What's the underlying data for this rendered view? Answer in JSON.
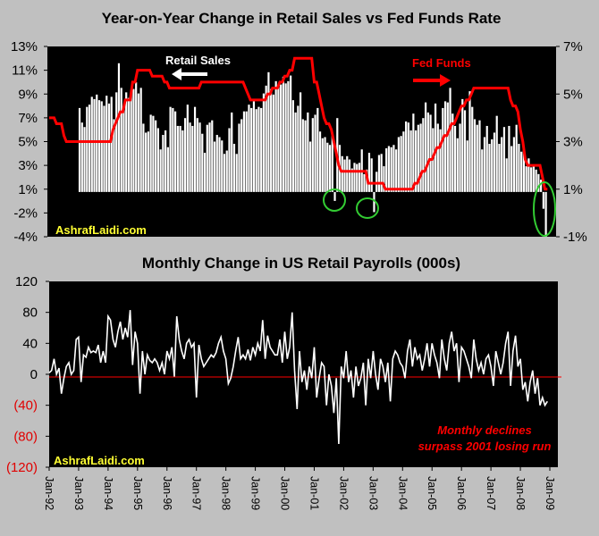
{
  "chart_data": [
    {
      "type": "bar+line",
      "title": "Year-on-Year Change in Retail Sales vs Fed Funds Rate",
      "left_axis": {
        "ylim": [
          -4,
          13
        ],
        "tick_labels": [
          "13%",
          "11%",
          "9%",
          "7%",
          "5%",
          "3%",
          "1%",
          "-2%",
          "-4%"
        ]
      },
      "right_axis": {
        "ylim": [
          -1,
          7
        ],
        "tick_labels": [
          "7%",
          "5%",
          "3%",
          "1%",
          "-1%"
        ]
      },
      "grid": false,
      "background": "#000000",
      "series": [
        {
          "name": "Retail Sales",
          "type": "bar",
          "axis": "left",
          "color": "#ffffff",
          "start": "Jan-93",
          "values": [
            7.5,
            6.2,
            5.8,
            7.6,
            7.8,
            8.5,
            8.3,
            8.7,
            8.2,
            8.1,
            7.7,
            8.6,
            7.9,
            8.5,
            6.5,
            8.9,
            11.5,
            9.3,
            7.6,
            8.9,
            8.4,
            9.1,
            9.2,
            9.8,
            8.8,
            9.3,
            6.1,
            5.3,
            5.4,
            6.9,
            6.8,
            6.4,
            5.7,
            3.8,
            5.1,
            5.5,
            4.0,
            7.6,
            7.5,
            7.2,
            5.9,
            5.9,
            5.5,
            6.6,
            7.8,
            6.2,
            5.9,
            7.6,
            6.6,
            6.2,
            5.2,
            3.5,
            6.0,
            6.2,
            6.4,
            4.5,
            5.1,
            4.9,
            4.6,
            3.4,
            3.7,
            5.7,
            7.1,
            4.3,
            3.4,
            6.1,
            6.5,
            7.2,
            7.2,
            7.8,
            7.5,
            8.1,
            7.4,
            7.6,
            7.5,
            8.8,
            9.5,
            10.7,
            9.2,
            8.7,
            9.9,
            9.4,
            9.6,
            10.3,
            9.7,
            9.9,
            10.4,
            8.2,
            7.1,
            7.7,
            8.9,
            6.5,
            6.4,
            7.1,
            4.5,
            6.6,
            6.9,
            7.5,
            5.4,
            4.8,
            4.9,
            4.4,
            4.2,
            5.1,
            -0.8,
            6.6,
            4.2,
            3.2,
            2.9,
            3.2,
            2.9,
            2.1,
            2.6,
            2.5,
            2.6,
            3.8,
            1.6,
            2.0,
            3.5,
            3.0,
            -1.8,
            1.8,
            3.3,
            3.4,
            2.3,
            3.9,
            4.1,
            4.0,
            4.2,
            3.8,
            4.9,
            5.0,
            5.4,
            6.3,
            6.2,
            5.5,
            7.0,
            5.5,
            6.0,
            6.1,
            6.6,
            8.0,
            7.1,
            6.9,
            5.7,
            7.9,
            6.1,
            5.6,
            7.5,
            8.1,
            8.0,
            9.3,
            7.0,
            5.9,
            4.8,
            6.1,
            8.3,
            7.3,
            4.6,
            9.0,
            7.6,
            6.5,
            6.0,
            6.4,
            3.8,
            4.9,
            5.9,
            4.3,
            4.7,
            5.3,
            6.8,
            4.3,
            4.9,
            5.8,
            3.0,
            5.9,
            4.1,
            4.9,
            6.0,
            4.3,
            3.6,
            4.1,
            2.3,
            3.0,
            2.2,
            2.4,
            2.0,
            1.6,
            1.1,
            -1.5,
            -4.0
          ]
        },
        {
          "name": "Fed Funds",
          "type": "line",
          "axis": "right",
          "color": "#ff0000",
          "start": "Jan-92",
          "values": [
            4,
            4,
            4,
            3.75,
            3.75,
            3.75,
            3.25,
            3,
            3,
            3,
            3,
            3,
            3,
            3,
            3,
            3,
            3,
            3,
            3,
            3,
            3,
            3,
            3,
            3,
            3,
            3,
            3.5,
            3.75,
            4,
            4.25,
            4.25,
            4.75,
            4.75,
            4.75,
            5.5,
            5.5,
            6,
            6,
            6,
            6,
            6,
            6,
            5.75,
            5.75,
            5.75,
            5.75,
            5.75,
            5.5,
            5.5,
            5.25,
            5.25,
            5.25,
            5.25,
            5.25,
            5.25,
            5.25,
            5.25,
            5.25,
            5.25,
            5.25,
            5.25,
            5.25,
            5.5,
            5.5,
            5.5,
            5.5,
            5.5,
            5.5,
            5.5,
            5.5,
            5.5,
            5.5,
            5.5,
            5.5,
            5.5,
            5.5,
            5.5,
            5.5,
            5.5,
            5.5,
            5.25,
            5,
            4.75,
            4.75,
            4.75,
            4.75,
            4.75,
            4.75,
            4.75,
            5,
            5,
            5.25,
            5.25,
            5.25,
            5.5,
            5.5,
            5.75,
            5.75,
            6,
            6,
            6.5,
            6.5,
            6.5,
            6.5,
            6.5,
            6.5,
            6.5,
            6.5,
            5.5,
            5.5,
            5,
            4.5,
            4,
            3.75,
            3.75,
            3.5,
            3,
            2.5,
            2,
            1.75,
            1.75,
            1.75,
            1.75,
            1.75,
            1.75,
            1.75,
            1.75,
            1.75,
            1.75,
            1.75,
            1.25,
            1.25,
            1.25,
            1.25,
            1.25,
            1.25,
            1.25,
            1,
            1,
            1,
            1,
            1,
            1,
            1,
            1,
            1,
            1,
            1,
            1,
            1.25,
            1.25,
            1.5,
            1.75,
            1.75,
            2,
            2.25,
            2.25,
            2.5,
            2.75,
            2.75,
            3,
            3.25,
            3.25,
            3.5,
            3.75,
            3.75,
            4,
            4.25,
            4.5,
            4.5,
            4.75,
            4.75,
            5,
            5.25,
            5.25,
            5.25,
            5.25,
            5.25,
            5.25,
            5.25,
            5.25,
            5.25,
            5.25,
            5.25,
            5.25,
            5.25,
            5.25,
            5.25,
            4.75,
            4.5,
            4.5,
            4.25,
            3.5,
            3,
            2.25,
            2,
            2,
            2,
            2,
            2,
            2,
            1.5,
            1,
            1
          ]
        }
      ],
      "annotations": {
        "retail_label": "Retail Sales",
        "fed_label": "Fed Funds",
        "watermark": "AshrafLaidi.com"
      }
    },
    {
      "type": "line",
      "title": "Monthly Change in US Retail Payrolls (000s)",
      "ylim": [
        -120,
        120
      ],
      "tick_labels": [
        "120",
        "80",
        "40",
        "0",
        "(40)",
        "(80)",
        "(120)"
      ],
      "negative_tick_color": "#e00000",
      "zero_line_color": "#ff0000",
      "grid": false,
      "background": "#000000",
      "series": [
        {
          "type": "line",
          "color": "#ffffff",
          "start": "Jan-92",
          "values": [
            2,
            5,
            20,
            0,
            8,
            -25,
            -5,
            10,
            15,
            0,
            5,
            45,
            48,
            -10,
            25,
            22,
            35,
            28,
            30,
            28,
            38,
            15,
            30,
            15,
            75,
            70,
            45,
            35,
            55,
            68,
            45,
            60,
            48,
            83,
            12,
            55,
            40,
            -25,
            30,
            0,
            25,
            18,
            15,
            20,
            15,
            5,
            15,
            0,
            30,
            20,
            35,
            -3,
            75,
            45,
            30,
            20,
            40,
            45,
            35,
            40,
            -30,
            38,
            20,
            10,
            15,
            20,
            25,
            22,
            28,
            40,
            48,
            30,
            20,
            -12,
            -5,
            10,
            30,
            48,
            20,
            25,
            20,
            32,
            18,
            35,
            25,
            40,
            30,
            70,
            20,
            50,
            35,
            30,
            25,
            25,
            45,
            15,
            55,
            20,
            35,
            80,
            5,
            -45,
            30,
            -10,
            5,
            -20,
            10,
            -5,
            35,
            -30,
            -5,
            15,
            10,
            -40,
            0,
            -15,
            -50,
            -5,
            -90,
            10,
            -5,
            30,
            -10,
            5,
            -30,
            10,
            -15,
            -5,
            15,
            -40,
            20,
            -5,
            30,
            0,
            -20,
            20,
            10,
            -10,
            15,
            -35,
            20,
            30,
            25,
            15,
            10,
            -5,
            30,
            45,
            10,
            35,
            20,
            25,
            5,
            20,
            40,
            10,
            40,
            25,
            15,
            -5,
            45,
            20,
            5,
            40,
            55,
            30,
            40,
            -10,
            35,
            30,
            20,
            10,
            -5,
            45,
            20,
            5,
            15,
            0,
            20,
            25,
            10,
            -15,
            30,
            15,
            0,
            15,
            40,
            55,
            -15,
            30,
            50,
            10,
            20,
            -20,
            -10,
            -35,
            -10,
            5,
            -25,
            -5,
            -40,
            -30,
            -40,
            -35
          ]
        }
      ],
      "annotations": {
        "note_line1": "Monthly declines",
        "note_line2": "surpass 2001 losing run",
        "watermark": "AshrafLaidi.com"
      }
    }
  ],
  "x_tick_labels": [
    "Jan-92",
    "Jan-93",
    "Jan-94",
    "Jan-95",
    "Jan-96",
    "Jan-97",
    "Jan-98",
    "Jan-99",
    "Jan-00",
    "Jan-01",
    "Jan-02",
    "Jan-03",
    "Jan-04",
    "Jan-05",
    "Jan-06",
    "Jan-07",
    "Jan-08",
    "Jan-09"
  ],
  "colors": {
    "background": "#c0c0c0",
    "plot": "#000000",
    "highlight_circle": "#33cc33",
    "watermark": "#ffff33",
    "note": "#ff0000"
  }
}
